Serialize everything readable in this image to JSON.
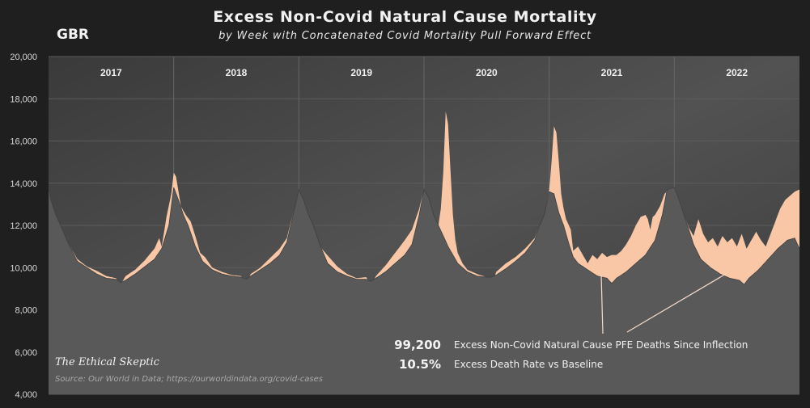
{
  "title": "Excess Non-Covid Natural Cause Mortality",
  "subtitle": "by Week with Concatenated Covid Mortality Pull Forward Effect",
  "country": "GBR",
  "watermark": "The Ethical Skeptic",
  "source": "Source: Our World in Data; https://ourworldindata.org/covid-cases",
  "stats": [
    {
      "value": "99,200",
      "label": "Excess Non-Covid Natural Cause PFE Deaths Since Inflection"
    },
    {
      "value": "10.5%",
      "label": "Excess Death Rate vs Baseline"
    }
  ],
  "colors": {
    "background": "#1f1f1f",
    "plot_area": "#4a4a4a",
    "baseline_fill": "#595959",
    "excess_fill": "#f9c7a5",
    "grid": "#5c5c5c",
    "year_divider": "#666666"
  },
  "chart_data": {
    "type": "area",
    "title": "Excess Non-Covid Natural Cause Mortality",
    "subtitle": "by Week with Concatenated Covid Mortality Pull Forward Effect",
    "xlabel": "",
    "ylabel": "",
    "ylim": [
      4000,
      20000
    ],
    "yticks": [
      4000,
      6000,
      8000,
      10000,
      12000,
      14000,
      16000,
      18000,
      20000
    ],
    "ytick_labels": [
      "4,000",
      "6,000",
      "8,000",
      "10,000",
      "12,000",
      "14,000",
      "16,000",
      "18,000",
      "20,000"
    ],
    "years": [
      "2017",
      "2018",
      "2019",
      "2020",
      "2021",
      "2022"
    ],
    "x_unit": "week index (52 weeks per year, starting 2017 week 1)",
    "grid": true,
    "legend": "none",
    "series": [
      {
        "role": "baseline",
        "keyframes": [
          [
            0,
            13800
          ],
          [
            1,
            13200
          ],
          [
            3,
            12500
          ],
          [
            5,
            12000
          ],
          [
            8,
            11200
          ],
          [
            12,
            10300
          ],
          [
            16,
            10000
          ],
          [
            20,
            9700
          ],
          [
            24,
            9500
          ],
          [
            28,
            9450
          ],
          [
            30,
            9300
          ],
          [
            32,
            9400
          ],
          [
            36,
            9700
          ],
          [
            40,
            10050
          ],
          [
            44,
            10400
          ],
          [
            47,
            10900
          ],
          [
            50,
            12000
          ],
          [
            52,
            13800
          ],
          [
            54,
            13200
          ],
          [
            56,
            12500
          ],
          [
            58,
            12000
          ],
          [
            61,
            11000
          ],
          [
            64,
            10300
          ],
          [
            68,
            9900
          ],
          [
            72,
            9700
          ],
          [
            76,
            9600
          ],
          [
            80,
            9550
          ],
          [
            82,
            9450
          ],
          [
            84,
            9600
          ],
          [
            88,
            9900
          ],
          [
            92,
            10200
          ],
          [
            96,
            10600
          ],
          [
            99,
            11200
          ],
          [
            101,
            12200
          ],
          [
            104,
            13700
          ],
          [
            106,
            13200
          ],
          [
            108,
            12500
          ],
          [
            110,
            12000
          ],
          [
            113,
            11000
          ],
          [
            116,
            10200
          ],
          [
            120,
            9800
          ],
          [
            124,
            9600
          ],
          [
            128,
            9450
          ],
          [
            132,
            9450
          ],
          [
            134,
            9350
          ],
          [
            136,
            9500
          ],
          [
            140,
            9800
          ],
          [
            144,
            10200
          ],
          [
            148,
            10600
          ],
          [
            151,
            11100
          ],
          [
            154,
            12500
          ],
          [
            156,
            13700
          ],
          [
            158,
            13300
          ],
          [
            160,
            12500
          ],
          [
            162,
            12000
          ],
          [
            164,
            11500
          ],
          [
            166,
            11000
          ],
          [
            170,
            10200
          ],
          [
            174,
            9800
          ],
          [
            178,
            9600
          ],
          [
            182,
            9550
          ],
          [
            184,
            9550
          ],
          [
            186,
            9650
          ],
          [
            190,
            9950
          ],
          [
            194,
            10300
          ],
          [
            198,
            10700
          ],
          [
            202,
            11300
          ],
          [
            204,
            12000
          ],
          [
            206,
            12500
          ],
          [
            208,
            13600
          ],
          [
            210,
            13500
          ],
          [
            212,
            12600
          ],
          [
            214,
            12000
          ],
          [
            216,
            11200
          ],
          [
            218,
            10500
          ],
          [
            220,
            10200
          ],
          [
            224,
            9900
          ],
          [
            228,
            9600
          ],
          [
            232,
            9500
          ],
          [
            234,
            9250
          ],
          [
            236,
            9500
          ],
          [
            240,
            9800
          ],
          [
            244,
            10200
          ],
          [
            248,
            10600
          ],
          [
            252,
            11300
          ],
          [
            255,
            12500
          ],
          [
            257,
            13700
          ],
          [
            260,
            13800
          ],
          [
            262,
            13200
          ],
          [
            264,
            12500
          ],
          [
            266,
            11800
          ],
          [
            268,
            11100
          ],
          [
            271,
            10400
          ],
          [
            275,
            10000
          ],
          [
            279,
            9700
          ],
          [
            283,
            9500
          ],
          [
            287,
            9400
          ],
          [
            289,
            9200
          ],
          [
            291,
            9500
          ],
          [
            295,
            9900
          ],
          [
            299,
            10400
          ],
          [
            303,
            10900
          ],
          [
            307,
            11300
          ],
          [
            310,
            11400
          ],
          [
            312,
            10900
          ]
        ]
      },
      {
        "role": "excess_upper",
        "keyframes": [
          [
            0,
            13800
          ],
          [
            1,
            13200
          ],
          [
            3,
            12500
          ],
          [
            5,
            12000
          ],
          [
            8,
            11200
          ],
          [
            12,
            10400
          ],
          [
            16,
            10050
          ],
          [
            20,
            9850
          ],
          [
            24,
            9600
          ],
          [
            28,
            9500
          ],
          [
            30,
            9200
          ],
          [
            32,
            9600
          ],
          [
            36,
            9900
          ],
          [
            40,
            10350
          ],
          [
            44,
            10900
          ],
          [
            46,
            11400
          ],
          [
            47,
            11000
          ],
          [
            49,
            12400
          ],
          [
            51,
            13500
          ],
          [
            52,
            14500
          ],
          [
            53,
            14300
          ],
          [
            54,
            13600
          ],
          [
            55,
            12900
          ],
          [
            57,
            12500
          ],
          [
            59,
            12200
          ],
          [
            61,
            11500
          ],
          [
            63,
            10700
          ],
          [
            65,
            10500
          ],
          [
            68,
            10000
          ],
          [
            72,
            9800
          ],
          [
            76,
            9650
          ],
          [
            80,
            9600
          ],
          [
            82,
            9100
          ],
          [
            84,
            9700
          ],
          [
            88,
            10000
          ],
          [
            92,
            10450
          ],
          [
            96,
            10900
          ],
          [
            99,
            11400
          ],
          [
            101,
            12300
          ],
          [
            104,
            13600
          ],
          [
            106,
            13200
          ],
          [
            108,
            12500
          ],
          [
            110,
            12000
          ],
          [
            112,
            11100
          ],
          [
            115,
            10700
          ],
          [
            120,
            10050
          ],
          [
            124,
            9700
          ],
          [
            128,
            9500
          ],
          [
            132,
            9550
          ],
          [
            134,
            9100
          ],
          [
            136,
            9600
          ],
          [
            140,
            10100
          ],
          [
            144,
            10700
          ],
          [
            148,
            11300
          ],
          [
            151,
            11800
          ],
          [
            154,
            12800
          ],
          [
            156,
            13700
          ],
          [
            158,
            13300
          ],
          [
            160,
            12500
          ],
          [
            162,
            12000
          ],
          [
            163,
            12800
          ],
          [
            164,
            14500
          ],
          [
            165,
            17400
          ],
          [
            166,
            16800
          ],
          [
            167,
            14600
          ],
          [
            168,
            12500
          ],
          [
            169,
            11300
          ],
          [
            170,
            10700
          ],
          [
            172,
            10200
          ],
          [
            174,
            9900
          ],
          [
            178,
            9700
          ],
          [
            182,
            9550
          ],
          [
            184,
            9100
          ],
          [
            186,
            9800
          ],
          [
            190,
            10200
          ],
          [
            194,
            10500
          ],
          [
            198,
            10900
          ],
          [
            202,
            11400
          ],
          [
            204,
            12000
          ],
          [
            206,
            12500
          ],
          [
            208,
            13700
          ],
          [
            209,
            15000
          ],
          [
            210,
            16700
          ],
          [
            211,
            16400
          ],
          [
            212,
            15000
          ],
          [
            213,
            13500
          ],
          [
            214,
            12800
          ],
          [
            215,
            12300
          ],
          [
            217,
            11800
          ],
          [
            218,
            10800
          ],
          [
            220,
            11000
          ],
          [
            222,
            10600
          ],
          [
            224,
            10200
          ],
          [
            226,
            10600
          ],
          [
            228,
            10400
          ],
          [
            230,
            10700
          ],
          [
            232,
            10500
          ],
          [
            234,
            10600
          ],
          [
            236,
            10600
          ],
          [
            238,
            10800
          ],
          [
            240,
            11100
          ],
          [
            242,
            11500
          ],
          [
            244,
            12000
          ],
          [
            246,
            12400
          ],
          [
            248,
            12500
          ],
          [
            249,
            12300
          ],
          [
            250,
            11800
          ],
          [
            251,
            12400
          ],
          [
            252,
            12500
          ],
          [
            254,
            12900
          ],
          [
            256,
            13500
          ],
          [
            258,
            13700
          ],
          [
            260,
            13800
          ],
          [
            262,
            13200
          ],
          [
            264,
            12500
          ],
          [
            266,
            11900
          ],
          [
            268,
            11500
          ],
          [
            270,
            12300
          ],
          [
            272,
            11600
          ],
          [
            274,
            11200
          ],
          [
            276,
            11400
          ],
          [
            278,
            11000
          ],
          [
            280,
            11500
          ],
          [
            282,
            11200
          ],
          [
            284,
            11400
          ],
          [
            286,
            11000
          ],
          [
            288,
            11600
          ],
          [
            290,
            10900
          ],
          [
            292,
            11300
          ],
          [
            294,
            11700
          ],
          [
            296,
            11300
          ],
          [
            298,
            11000
          ],
          [
            300,
            11600
          ],
          [
            302,
            12200
          ],
          [
            304,
            12800
          ],
          [
            306,
            13200
          ],
          [
            308,
            13400
          ],
          [
            310,
            13600
          ],
          [
            312,
            13700
          ]
        ]
      }
    ],
    "annotations": [
      {
        "value": "99,200",
        "label": "Excess Non-Covid Natural Cause PFE Deaths Since Inflection"
      },
      {
        "value": "10.5%",
        "label": "Excess Death Rate vs Baseline"
      }
    ]
  }
}
